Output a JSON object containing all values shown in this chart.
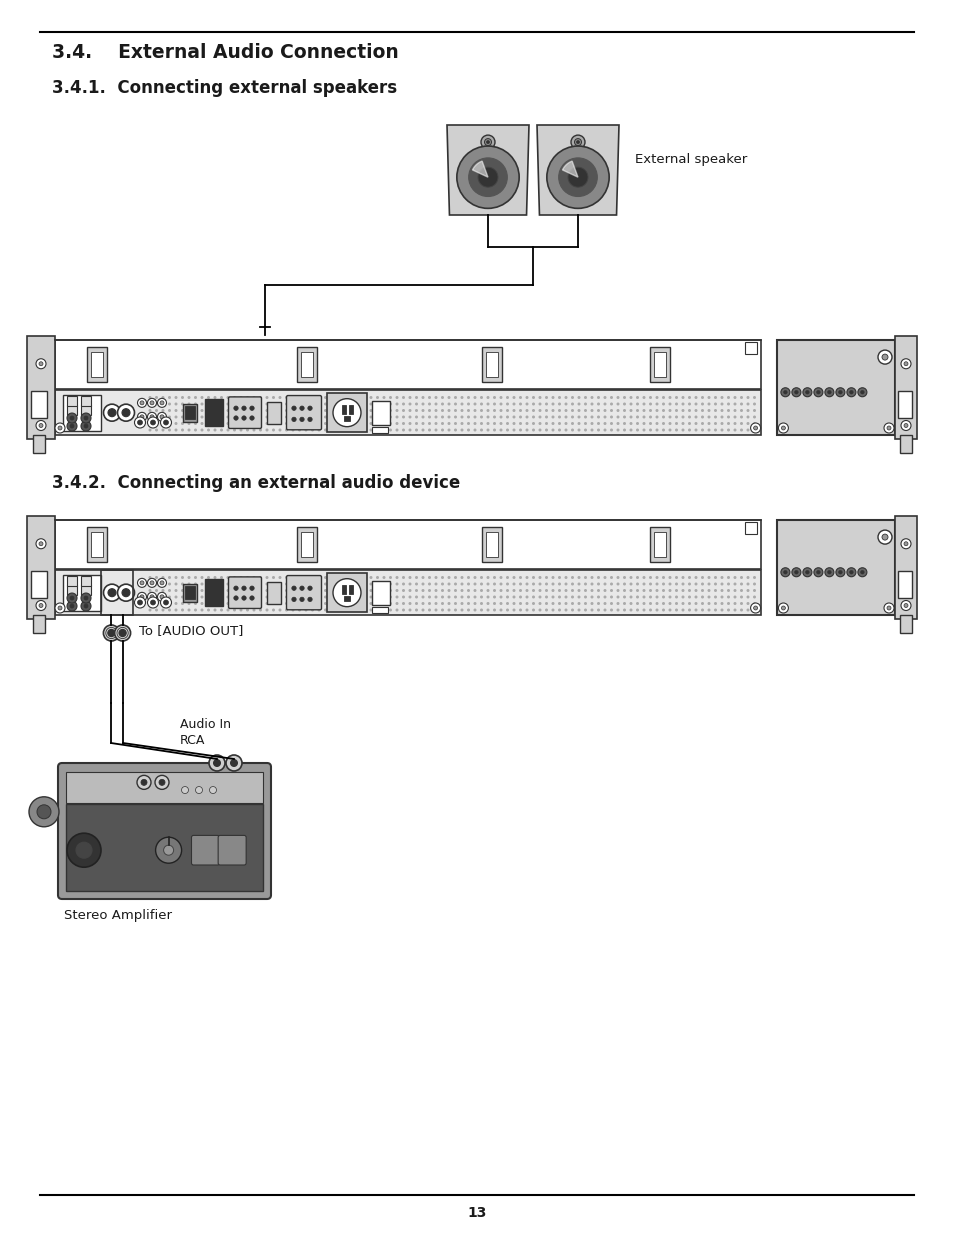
{
  "bg_color": "#ffffff",
  "text_color": "#1a1a1a",
  "title_main": "3.4.    External Audio Connection",
  "title_sub1": "3.4.1.  Connecting external speakers",
  "title_sub2": "3.4.2.  Connecting an external audio device",
  "label_ext_speaker": "External speaker",
  "label_audio_out": "To [AUDIO OUT]",
  "label_rca": "RCA",
  "label_audio_in": "Audio In",
  "label_stereo": "Stereo Amplifier",
  "page_number": "13",
  "gray_light": "#d0d0d0",
  "gray_mid": "#999999",
  "gray_dark": "#333333",
  "gray_panel": "#b0b0b0",
  "gray_hatching": "#888888",
  "black": "#000000",
  "white": "#ffffff"
}
